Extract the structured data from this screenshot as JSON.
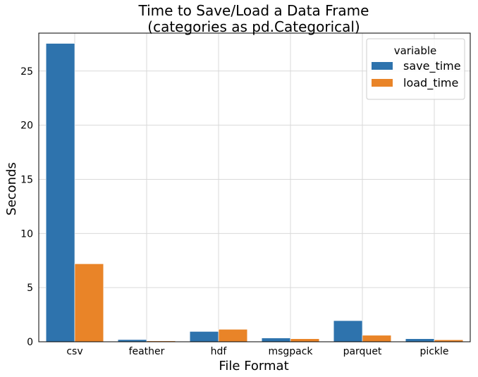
{
  "chart_data": {
    "type": "bar",
    "title_line1": "Time to Save/Load a Data Frame",
    "title_line2": "(categories as pd.Categorical)",
    "xlabel": "File Format",
    "ylabel": "Seconds",
    "categories": [
      "csv",
      "feather",
      "hdf",
      "msgpack",
      "parquet",
      "pickle"
    ],
    "ylim": [
      0,
      28.5
    ],
    "yticks": [
      0,
      5,
      10,
      15,
      20,
      25
    ],
    "grid": true,
    "legend": {
      "title": "variable",
      "placement": "top-right"
    },
    "series": [
      {
        "name": "save_time",
        "color": "#2e73ad",
        "values": [
          27.55,
          0.2,
          0.95,
          0.35,
          1.95,
          0.28
        ]
      },
      {
        "name": "load_time",
        "color": "#e98428",
        "values": [
          7.2,
          0.08,
          1.15,
          0.28,
          0.6,
          0.18
        ]
      }
    ]
  }
}
